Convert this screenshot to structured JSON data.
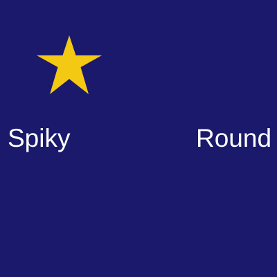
{
  "labels": {
    "left": "Spiky",
    "right": "Round"
  },
  "icons": {
    "star": "star-icon"
  },
  "colors": {
    "background": "#1a196c",
    "star": "#f4c914",
    "text": "#ffffff"
  }
}
